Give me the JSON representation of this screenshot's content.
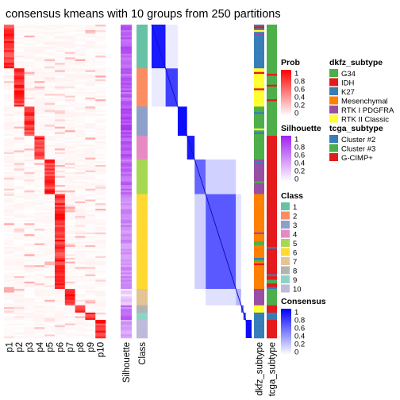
{
  "chart_data": {
    "type": "heatmap",
    "title": "consensus kmeans with 10 groups from 250 partitions",
    "prob_columns": [
      "p1",
      "p2",
      "p3",
      "p4",
      "p5",
      "p6",
      "p7",
      "p8",
      "p9",
      "p10"
    ],
    "annotation_columns": [
      "Silhouette",
      "Class"
    ],
    "right_annotation_columns": [
      "dkfz_subtype",
      "tcga_subtype"
    ],
    "sample_groups": [
      {
        "class": "1",
        "count": 24,
        "main_prob": "p1",
        "silhouette": 0.72,
        "consensus": 0.9
      },
      {
        "class": "2",
        "count": 21,
        "main_prob": "p2",
        "silhouette": 0.7,
        "consensus": 0.75
      },
      {
        "class": "3",
        "count": 16,
        "main_prob": "p3",
        "silhouette": 0.8,
        "consensus": 0.95
      },
      {
        "class": "4",
        "count": 13,
        "main_prob": "p4",
        "silhouette": 0.75,
        "consensus": 0.9
      },
      {
        "class": "5",
        "count": 19,
        "main_prob": "p5",
        "silhouette": 0.65,
        "consensus": 0.6
      },
      {
        "class": "6",
        "count": 52,
        "main_prob": "p6",
        "silhouette": 0.5,
        "consensus": 0.65
      },
      {
        "class": "7",
        "count": 9,
        "main_prob": "p7",
        "silhouette": 0.2,
        "consensus": 0.3
      },
      {
        "class": "8",
        "count": 4,
        "main_prob": "p8",
        "silhouette": 0.6,
        "consensus": 0.7
      },
      {
        "class": "9",
        "count": 4,
        "main_prob": "p9",
        "silhouette": 0.7,
        "consensus": 0.8
      },
      {
        "class": "10",
        "count": 10,
        "main_prob": "p10",
        "silhouette": 0.45,
        "consensus": 0.95
      }
    ],
    "legends": {
      "prob": {
        "title": "Prob",
        "ticks": [
          "1",
          "0.8",
          "0.6",
          "0.4",
          "0.2",
          "0"
        ],
        "low_color": "#ffffff",
        "high_color": "#ff0000"
      },
      "silhouette": {
        "title": "Silhouette",
        "ticks": [
          "1",
          "0.8",
          "0.6",
          "0.4",
          "0.2",
          "0"
        ],
        "low_color": "#ffffff",
        "high_color": "#a020f0"
      },
      "class": {
        "title": "Class",
        "items": [
          {
            "label": "1",
            "color": "#66c2a5"
          },
          {
            "label": "2",
            "color": "#fc8d62"
          },
          {
            "label": "3",
            "color": "#8da0cb"
          },
          {
            "label": "4",
            "color": "#e78ac3"
          },
          {
            "label": "5",
            "color": "#a6d854"
          },
          {
            "label": "6",
            "color": "#ffd92f"
          },
          {
            "label": "7",
            "color": "#e5c494"
          },
          {
            "label": "8",
            "color": "#b3b3b3"
          },
          {
            "label": "9",
            "color": "#8dd3c7"
          },
          {
            "label": "10",
            "color": "#bebada"
          }
        ]
      },
      "consensus": {
        "title": "Consensus",
        "ticks": [
          "1",
          "0.8",
          "0.6",
          "0.4",
          "0.2",
          "0"
        ],
        "low_color": "#ffffff",
        "high_color": "#0000ff"
      },
      "dkfz_subtype": {
        "title": "dkfz_subtype",
        "items": [
          {
            "label": "G34",
            "color": "#4daf4a"
          },
          {
            "label": "IDH",
            "color": "#e41a1c"
          },
          {
            "label": "K27",
            "color": "#377eb8"
          },
          {
            "label": "Mesenchymal",
            "color": "#ff7f00"
          },
          {
            "label": "RTK I PDGFRA",
            "color": "#984ea3"
          },
          {
            "label": "RTK II Classic",
            "color": "#ffff33"
          }
        ]
      },
      "tcga_subtype": {
        "title": "tcga_subtype",
        "items": [
          {
            "label": "Cluster #2",
            "color": "#377eb8"
          },
          {
            "label": "Cluster #3",
            "color": "#4daf4a"
          },
          {
            "label": "G-CIMP+",
            "color": "#e41a1c"
          }
        ]
      }
    }
  }
}
